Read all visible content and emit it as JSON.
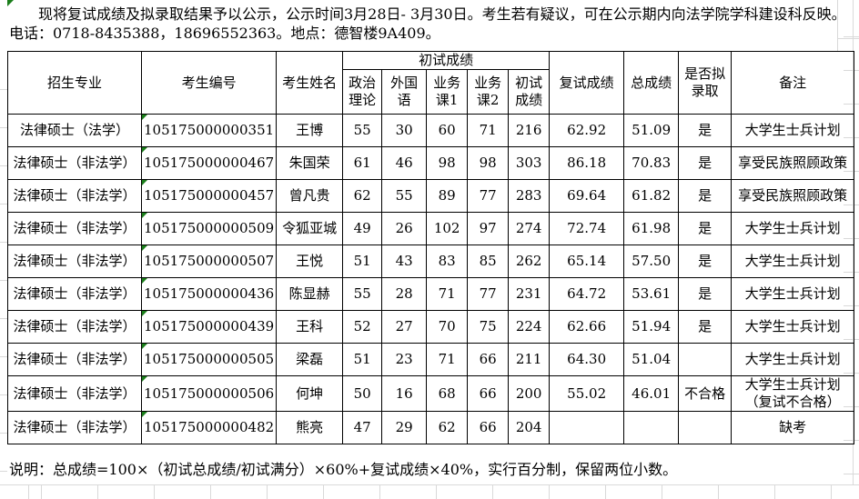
{
  "notice": {
    "line1": "现将复试成绩及拟录取结果予以公示，公示时间3月28日- 3月30日。考生若有疑议，可在公示期内向法学院学科建设科反映。",
    "line2": "电话：0718-8435388，18696552363。地点：德智楼9A409。"
  },
  "table": {
    "headers": {
      "major": "招生专业",
      "candidate_no": "考生编号",
      "name": "考生姓名",
      "initial_group": "初试成绩",
      "politics": "政治理论",
      "foreign_language": "外国语",
      "course1": "业务课1",
      "course2": "业务课2",
      "initial_total": "初试成绩",
      "retest_score": "复试成绩",
      "total_score": "总成绩",
      "admitted": "是否拟录取",
      "remark": "备注"
    },
    "rows": [
      [
        "法律硕士（法学）",
        "105175000000351",
        "王博",
        "55",
        "30",
        "60",
        "71",
        "216",
        "62.92",
        "51.09",
        "是",
        "大学生士兵计划"
      ],
      [
        "法律硕士（非法学）",
        "105175000000467",
        "朱国荣",
        "61",
        "46",
        "98",
        "98",
        "303",
        "86.18",
        "70.83",
        "是",
        "享受民族照顾政策"
      ],
      [
        "法律硕士（非法学）",
        "105175000000457",
        "曾凡贵",
        "62",
        "55",
        "89",
        "77",
        "283",
        "69.64",
        "61.82",
        "是",
        "享受民族照顾政策"
      ],
      [
        "法律硕士（非法学）",
        "105175000000509",
        "令狐亚城",
        "49",
        "26",
        "102",
        "97",
        "274",
        "72.74",
        "61.98",
        "是",
        "大学生士兵计划"
      ],
      [
        "法律硕士（非法学）",
        "105175000000507",
        "王悦",
        "51",
        "43",
        "83",
        "85",
        "262",
        "65.14",
        "57.50",
        "是",
        "大学生士兵计划"
      ],
      [
        "法律硕士（非法学）",
        "105175000000436",
        "陈显赫",
        "55",
        "28",
        "71",
        "77",
        "231",
        "64.72",
        "53.61",
        "是",
        "大学生士兵计划"
      ],
      [
        "法律硕士（非法学）",
        "105175000000439",
        "王科",
        "52",
        "27",
        "70",
        "75",
        "224",
        "62.66",
        "51.94",
        "是",
        "大学生士兵计划"
      ],
      [
        "法律硕士（非法学）",
        "105175000000505",
        "梁磊",
        "51",
        "23",
        "71",
        "66",
        "211",
        "64.30",
        "51.04",
        "",
        "大学生士兵计划"
      ],
      [
        "法律硕士（非法学）",
        "105175000000506",
        "何坤",
        "50",
        "16",
        "68",
        "66",
        "200",
        "55.02",
        "46.01",
        "不合格",
        "大学生士兵计划\n（复试不合格）"
      ],
      [
        "法律硕士（非法学）",
        "105175000000482",
        "熊亮",
        "47",
        "29",
        "62",
        "66",
        "204",
        "",
        "",
        "",
        "缺考"
      ]
    ]
  },
  "footnote": "说明：总成绩=100×（初试总成绩/初试满分）×60%+复试成绩×40%，实行百分制，保留两位小数。",
  "colors": {
    "table_border": "#000000",
    "gridline": "#d9d9d9",
    "indicator_green": "#1b7e1b"
  }
}
